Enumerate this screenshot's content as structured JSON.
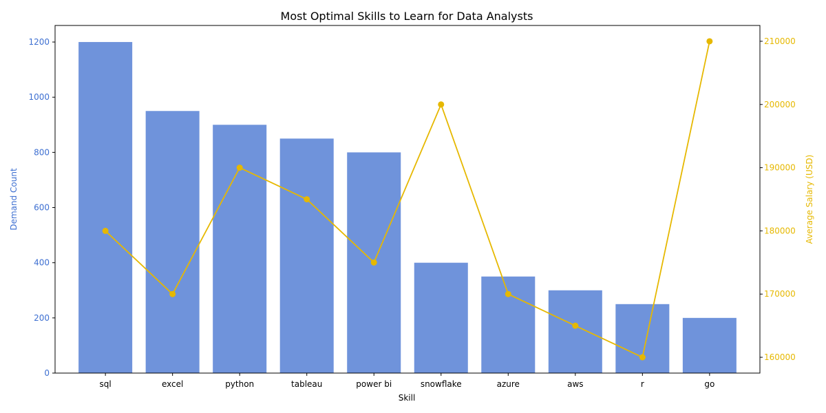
{
  "chart_data": {
    "type": "bar",
    "title": "Most Optimal Skills to Learn for Data Analysts",
    "xlabel": "Skill",
    "categories": [
      "sql",
      "excel",
      "python",
      "tableau",
      "power bi",
      "snowflake",
      "azure",
      "aws",
      "r",
      "go"
    ],
    "series": [
      {
        "type": "bar",
        "axis": "left",
        "values": [
          1200,
          950,
          900,
          850,
          800,
          400,
          350,
          300,
          250,
          200
        ]
      },
      {
        "type": "line",
        "axis": "right",
        "values": [
          180000,
          170000,
          190000,
          185000,
          175000,
          200000,
          170000,
          165000,
          160000,
          210000
        ]
      }
    ],
    "y_left": {
      "label": "Demand Count",
      "range": [
        0,
        1260
      ],
      "ticks": [
        0,
        200,
        400,
        600,
        800,
        1000,
        1200
      ]
    },
    "y_right": {
      "label": "Average Salary (USD)",
      "range": [
        157500,
        212500
      ],
      "ticks": [
        160000,
        170000,
        180000,
        190000,
        200000,
        210000
      ]
    },
    "grid": false,
    "colors": {
      "bar": "#6f93db",
      "line": "#e6b800",
      "left_axis": "#3d6fd1",
      "right_axis": "#e6b800"
    }
  }
}
